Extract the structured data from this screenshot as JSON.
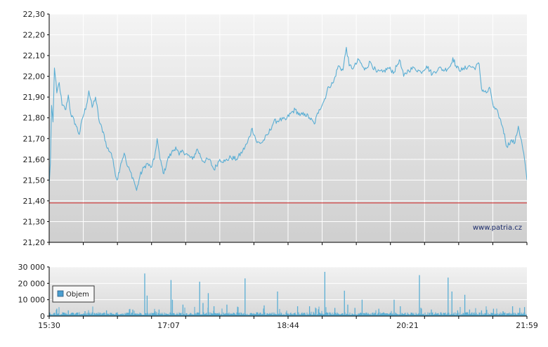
{
  "chart_data": [
    {
      "type": "line",
      "name": "price",
      "x_ticks": [
        "15:30",
        "17:07",
        "18:44",
        "20:21",
        "21:59"
      ],
      "y_ticks": [
        "21,20",
        "21,30",
        "21,40",
        "21,50",
        "21,60",
        "21,70",
        "21,80",
        "21,90",
        "22,00",
        "22,10",
        "22,20",
        "22,30"
      ],
      "ylim": [
        21.2,
        22.3
      ],
      "x_range": [
        "15:30",
        "21:59"
      ],
      "reference_line": 21.39,
      "watermark": "www.patria.cz",
      "grid": true,
      "colors": {
        "line": "#5aaed4",
        "reference": "#d04040",
        "grid": "#ffffff"
      },
      "anchor_points": [
        {
          "t": 0.0,
          "v": 21.48
        },
        {
          "t": 0.0025,
          "v": 21.58
        },
        {
          "t": 0.005,
          "v": 21.86
        },
        {
          "t": 0.008,
          "v": 21.78
        },
        {
          "t": 0.011,
          "v": 22.04
        },
        {
          "t": 0.016,
          "v": 21.92
        },
        {
          "t": 0.021,
          "v": 21.97
        },
        {
          "t": 0.027,
          "v": 21.86
        },
        {
          "t": 0.035,
          "v": 21.84
        },
        {
          "t": 0.04,
          "v": 21.91
        },
        {
          "t": 0.045,
          "v": 21.82
        },
        {
          "t": 0.055,
          "v": 21.77
        },
        {
          "t": 0.063,
          "v": 21.72
        },
        {
          "t": 0.07,
          "v": 21.8
        },
        {
          "t": 0.078,
          "v": 21.86
        },
        {
          "t": 0.083,
          "v": 21.93
        },
        {
          "t": 0.09,
          "v": 21.85
        },
        {
          "t": 0.097,
          "v": 21.9
        },
        {
          "t": 0.105,
          "v": 21.78
        },
        {
          "t": 0.115,
          "v": 21.72
        },
        {
          "t": 0.12,
          "v": 21.66
        },
        {
          "t": 0.13,
          "v": 21.63
        },
        {
          "t": 0.137,
          "v": 21.55
        },
        {
          "t": 0.142,
          "v": 21.5
        },
        {
          "t": 0.15,
          "v": 21.58
        },
        {
          "t": 0.157,
          "v": 21.63
        },
        {
          "t": 0.163,
          "v": 21.57
        },
        {
          "t": 0.17,
          "v": 21.54
        },
        {
          "t": 0.177,
          "v": 21.5
        },
        {
          "t": 0.183,
          "v": 21.45
        },
        {
          "t": 0.19,
          "v": 21.52
        },
        {
          "t": 0.198,
          "v": 21.56
        },
        {
          "t": 0.205,
          "v": 21.58
        },
        {
          "t": 0.213,
          "v": 21.56
        },
        {
          "t": 0.22,
          "v": 21.6
        },
        {
          "t": 0.226,
          "v": 21.7
        },
        {
          "t": 0.232,
          "v": 21.6
        },
        {
          "t": 0.24,
          "v": 21.53
        },
        {
          "t": 0.248,
          "v": 21.6
        },
        {
          "t": 0.256,
          "v": 21.63
        },
        {
          "t": 0.265,
          "v": 21.66
        },
        {
          "t": 0.272,
          "v": 21.62
        },
        {
          "t": 0.28,
          "v": 21.64
        },
        {
          "t": 0.29,
          "v": 21.62
        },
        {
          "t": 0.3,
          "v": 21.6
        },
        {
          "t": 0.31,
          "v": 21.65
        },
        {
          "t": 0.322,
          "v": 21.59
        },
        {
          "t": 0.335,
          "v": 21.6
        },
        {
          "t": 0.345,
          "v": 21.55
        },
        {
          "t": 0.357,
          "v": 21.6
        },
        {
          "t": 0.368,
          "v": 21.59
        },
        {
          "t": 0.38,
          "v": 21.61
        },
        {
          "t": 0.392,
          "v": 21.6
        },
        {
          "t": 0.405,
          "v": 21.64
        },
        {
          "t": 0.415,
          "v": 21.68
        },
        {
          "t": 0.425,
          "v": 21.75
        },
        {
          "t": 0.435,
          "v": 21.68
        },
        {
          "t": 0.445,
          "v": 21.68
        },
        {
          "t": 0.458,
          "v": 21.72
        },
        {
          "t": 0.47,
          "v": 21.78
        },
        {
          "t": 0.482,
          "v": 21.79
        },
        {
          "t": 0.495,
          "v": 21.79
        },
        {
          "t": 0.505,
          "v": 21.82
        },
        {
          "t": 0.515,
          "v": 21.84
        },
        {
          "t": 0.525,
          "v": 21.81
        },
        {
          "t": 0.535,
          "v": 21.82
        },
        {
          "t": 0.545,
          "v": 21.8
        },
        {
          "t": 0.555,
          "v": 21.77
        },
        {
          "t": 0.565,
          "v": 21.84
        },
        {
          "t": 0.575,
          "v": 21.88
        },
        {
          "t": 0.585,
          "v": 21.95
        },
        {
          "t": 0.595,
          "v": 21.97
        },
        {
          "t": 0.605,
          "v": 22.05
        },
        {
          "t": 0.615,
          "v": 22.03
        },
        {
          "t": 0.622,
          "v": 22.14
        },
        {
          "t": 0.628,
          "v": 22.05
        },
        {
          "t": 0.637,
          "v": 22.04
        },
        {
          "t": 0.648,
          "v": 22.08
        },
        {
          "t": 0.66,
          "v": 22.03
        },
        {
          "t": 0.672,
          "v": 22.07
        },
        {
          "t": 0.685,
          "v": 22.02
        },
        {
          "t": 0.698,
          "v": 22.02
        },
        {
          "t": 0.71,
          "v": 22.04
        },
        {
          "t": 0.722,
          "v": 22.02
        },
        {
          "t": 0.733,
          "v": 22.08
        },
        {
          "t": 0.742,
          "v": 22.0
        },
        {
          "t": 0.752,
          "v": 22.03
        },
        {
          "t": 0.765,
          "v": 22.04
        },
        {
          "t": 0.778,
          "v": 22.02
        },
        {
          "t": 0.79,
          "v": 22.05
        },
        {
          "t": 0.802,
          "v": 22.01
        },
        {
          "t": 0.815,
          "v": 22.04
        },
        {
          "t": 0.828,
          "v": 22.03
        },
        {
          "t": 0.84,
          "v": 22.05
        },
        {
          "t": 0.845,
          "v": 22.09
        },
        {
          "t": 0.853,
          "v": 22.04
        },
        {
          "t": 0.865,
          "v": 22.03
        },
        {
          "t": 0.878,
          "v": 22.05
        },
        {
          "t": 0.89,
          "v": 22.04
        },
        {
          "t": 0.9,
          "v": 22.06
        },
        {
          "t": 0.905,
          "v": 21.94
        },
        {
          "t": 0.915,
          "v": 21.92
        },
        {
          "t": 0.923,
          "v": 21.94
        },
        {
          "t": 0.93,
          "v": 21.85
        },
        {
          "t": 0.94,
          "v": 21.82
        },
        {
          "t": 0.95,
          "v": 21.75
        },
        {
          "t": 0.958,
          "v": 21.66
        },
        {
          "t": 0.966,
          "v": 21.69
        },
        {
          "t": 0.975,
          "v": 21.68
        },
        {
          "t": 0.982,
          "v": 21.76
        },
        {
          "t": 0.99,
          "v": 21.67
        },
        {
          "t": 0.995,
          "v": 21.6
        },
        {
          "t": 1.0,
          "v": 21.5
        }
      ]
    },
    {
      "type": "bar",
      "name": "volume",
      "legend": "Objem",
      "y_ticks": [
        "0",
        "10 000",
        "20 000",
        "30 000"
      ],
      "ylim": [
        0,
        30000
      ],
      "x_ticks": [
        "15:30",
        "17:07",
        "18:44",
        "20:21",
        "21:59"
      ],
      "grid": true,
      "baseline_level": 1800,
      "colors": {
        "bar": "#5aaed4",
        "legend_swatch": "#4a9ed0"
      },
      "spikes": [
        {
          "t": 0.016,
          "v": 4500
        },
        {
          "t": 0.04,
          "v": 3500
        },
        {
          "t": 0.075,
          "v": 3000
        },
        {
          "t": 0.12,
          "v": 3500
        },
        {
          "t": 0.175,
          "v": 4000
        },
        {
          "t": 0.2,
          "v": 26000
        },
        {
          "t": 0.205,
          "v": 12500
        },
        {
          "t": 0.23,
          "v": 4000
        },
        {
          "t": 0.255,
          "v": 22000
        },
        {
          "t": 0.258,
          "v": 10000
        },
        {
          "t": 0.28,
          "v": 7000
        },
        {
          "t": 0.315,
          "v": 21000
        },
        {
          "t": 0.322,
          "v": 8000
        },
        {
          "t": 0.333,
          "v": 14000
        },
        {
          "t": 0.345,
          "v": 6000
        },
        {
          "t": 0.372,
          "v": 7000
        },
        {
          "t": 0.41,
          "v": 23000
        },
        {
          "t": 0.45,
          "v": 6500
        },
        {
          "t": 0.478,
          "v": 15000
        },
        {
          "t": 0.52,
          "v": 6000
        },
        {
          "t": 0.545,
          "v": 6000
        },
        {
          "t": 0.577,
          "v": 27000
        },
        {
          "t": 0.598,
          "v": 5000
        },
        {
          "t": 0.618,
          "v": 15500
        },
        {
          "t": 0.625,
          "v": 7000
        },
        {
          "t": 0.64,
          "v": 5000
        },
        {
          "t": 0.655,
          "v": 10000
        },
        {
          "t": 0.69,
          "v": 4500
        },
        {
          "t": 0.722,
          "v": 10000
        },
        {
          "t": 0.735,
          "v": 6000
        },
        {
          "t": 0.775,
          "v": 25000
        },
        {
          "t": 0.8,
          "v": 4000
        },
        {
          "t": 0.835,
          "v": 23500
        },
        {
          "t": 0.843,
          "v": 15000
        },
        {
          "t": 0.855,
          "v": 3500
        },
        {
          "t": 0.87,
          "v": 13000
        },
        {
          "t": 0.88,
          "v": 4000
        },
        {
          "t": 0.905,
          "v": 3500
        },
        {
          "t": 0.93,
          "v": 4500
        },
        {
          "t": 0.95,
          "v": 3000
        },
        {
          "t": 0.97,
          "v": 6000
        },
        {
          "t": 0.985,
          "v": 5000
        },
        {
          "t": 0.995,
          "v": 5500
        }
      ]
    }
  ]
}
